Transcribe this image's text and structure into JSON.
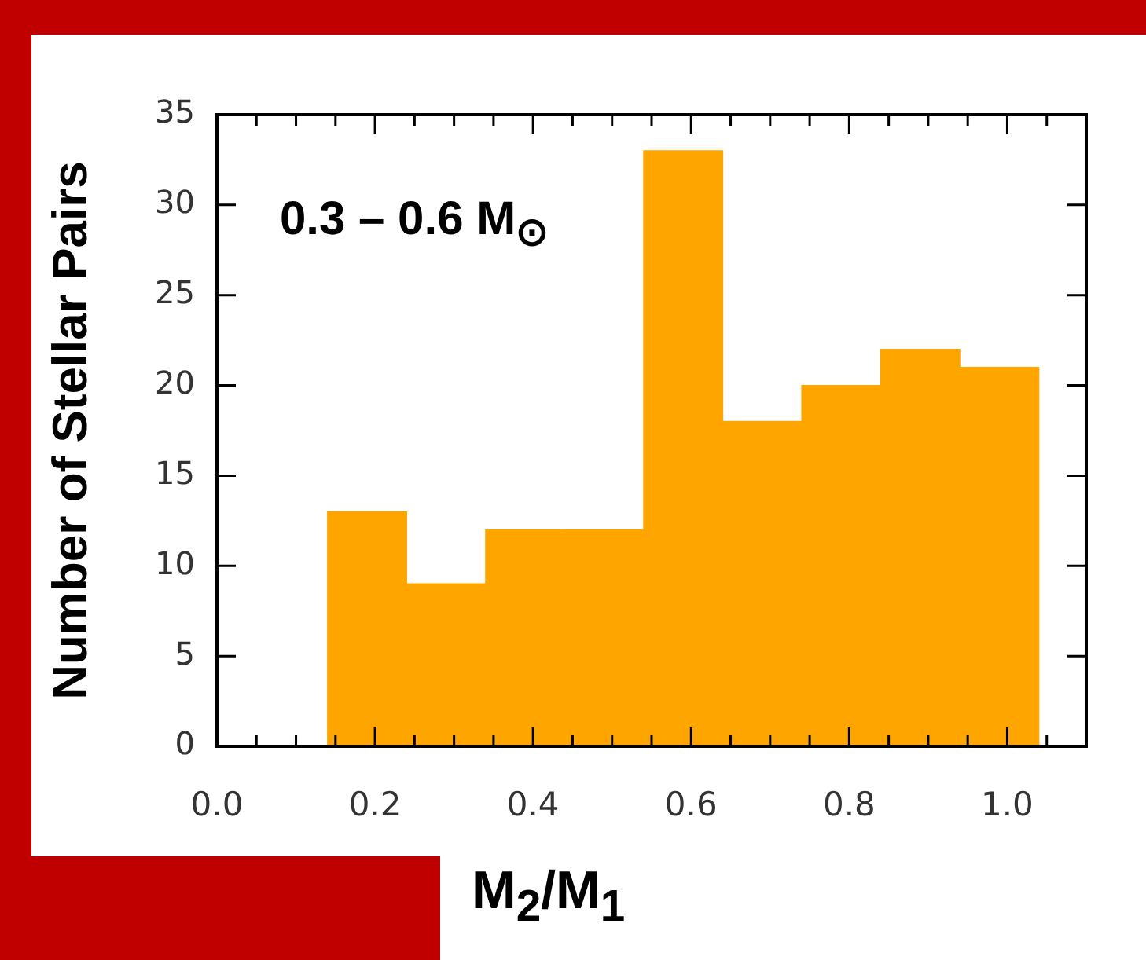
{
  "chart_data": {
    "type": "histogram",
    "ylabel": "Number of Stellar Pairs",
    "xlabel": "M$_{2}$/M$_{1}$",
    "annotations": [
      "0.3 – 0.6 M$_{⊙}$"
    ],
    "bins": [
      0.14,
      0.24,
      0.34,
      0.44,
      0.54,
      0.64,
      0.74,
      0.84,
      0.94,
      1.04
    ],
    "values": [
      13,
      9,
      12,
      12,
      33,
      18,
      20,
      22,
      21
    ],
    "color": "#ffa500",
    "xlim": [
      0,
      1.1
    ],
    "ylim": [
      0,
      35
    ],
    "xticks": [
      {
        "value": 0,
        "label": "0.0"
      },
      {
        "value": 0.05,
        "label": null
      },
      {
        "value": 0.1,
        "label": null
      },
      {
        "value": 0.15,
        "label": null
      },
      {
        "value": 0.2,
        "label": "0.2"
      },
      {
        "value": 0.25,
        "label": null
      },
      {
        "value": 0.3,
        "label": null
      },
      {
        "value": 0.35,
        "label": null
      },
      {
        "value": 0.4,
        "label": "0.4"
      },
      {
        "value": 0.45,
        "label": null
      },
      {
        "value": 0.5,
        "label": null
      },
      {
        "value": 0.55,
        "label": null
      },
      {
        "value": 0.6,
        "label": "0.6"
      },
      {
        "value": 0.65,
        "label": null
      },
      {
        "value": 0.7,
        "label": null
      },
      {
        "value": 0.75,
        "label": null
      },
      {
        "value": 0.8,
        "label": "0.8"
      },
      {
        "value": 0.85,
        "label": null
      },
      {
        "value": 0.9,
        "label": null
      },
      {
        "value": 0.95,
        "label": null
      },
      {
        "value": 1.0,
        "label": "1.0"
      },
      {
        "value": 1.05,
        "label": null
      },
      {
        "value": 1.1,
        "label": null
      }
    ],
    "yticks": [
      0,
      5,
      10,
      15,
      20,
      25,
      30,
      35
    ]
  }
}
